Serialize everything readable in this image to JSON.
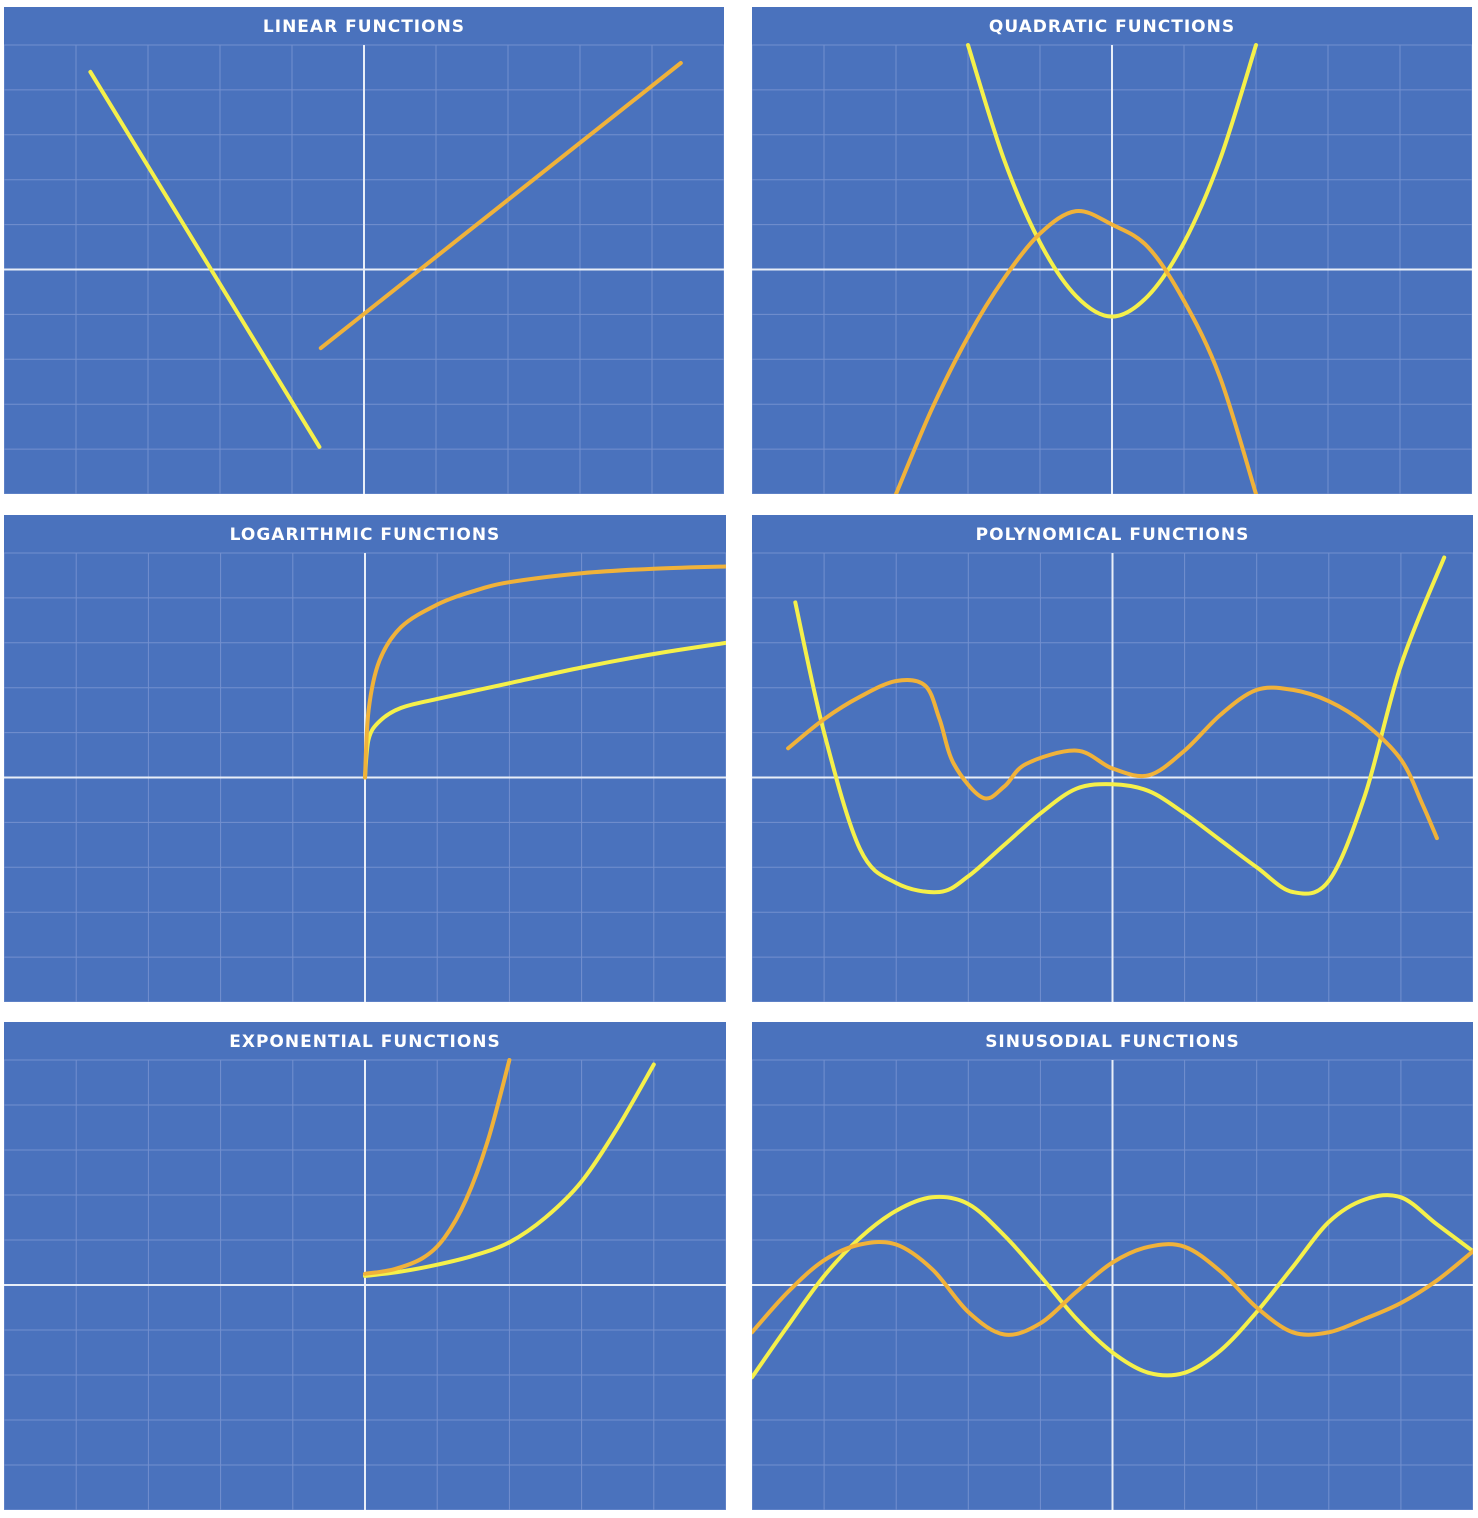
{
  "colors": {
    "panel_background": "#4a72bd",
    "grid": "#7390cf",
    "axis": "#e8eef8",
    "title_text": "#ffffff",
    "yellow_curve": "#f5f04a",
    "orange_curve": "#f0b23a"
  },
  "panels": [
    {
      "title": "LINEAR FUNCTIONS"
    },
    {
      "title": "QUADRATIC FUNCTIONS"
    },
    {
      "title": "LOGARITHMIC FUNCTIONS"
    },
    {
      "title": "POLYNOMICAL FUNCTIONS"
    },
    {
      "title": "EXPONENTIAL FUNCTIONS"
    },
    {
      "title": "SINUSODIAL FUNCTIONS"
    }
  ],
  "chart_data": [
    {
      "type": "line",
      "title": "LINEAR FUNCTIONS",
      "xlim": [
        -5,
        5
      ],
      "ylim": [
        -5,
        5
      ],
      "grid": true,
      "legend": "none",
      "series": [
        {
          "color": "#f5f04a",
          "points": [
            [
              -3.8,
              4.4
            ],
            [
              -0.62,
              -3.95
            ]
          ]
        },
        {
          "color": "#f0b23a",
          "points": [
            [
              -0.6,
              -1.75
            ],
            [
              4.4,
              4.6
            ]
          ]
        }
      ]
    },
    {
      "type": "line",
      "title": "QUADRATIC FUNCTIONS",
      "xlim": [
        -5,
        5
      ],
      "ylim": [
        -5,
        5
      ],
      "grid": true,
      "legend": "none",
      "series": [
        {
          "color": "#f5f04a",
          "points": [
            [
              -2,
              5
            ],
            [
              -1.5,
              2.45
            ],
            [
              -1,
              0.6
            ],
            [
              -0.5,
              -0.59
            ],
            [
              0,
              -1.05
            ],
            [
              0.5,
              -0.59
            ],
            [
              1,
              0.6
            ],
            [
              1.5,
              2.45
            ],
            [
              2,
              5
            ]
          ]
        },
        {
          "color": "#f0b23a",
          "points": [
            [
              -3,
              -5
            ],
            [
              -2.5,
              -3.1
            ],
            [
              -2,
              -1.5
            ],
            [
              -1.5,
              -0.2
            ],
            [
              -1,
              0.8
            ],
            [
              -0.5,
              1.3
            ],
            [
              0,
              1
            ],
            [
              0.5,
              0.5
            ],
            [
              1,
              -0.7
            ],
            [
              1.5,
              -2.4
            ],
            [
              2,
              -5
            ]
          ]
        }
      ]
    },
    {
      "type": "line",
      "title": "LOGARITHMIC FUNCTIONS",
      "xlim": [
        -5,
        5
      ],
      "ylim": [
        -5,
        5
      ],
      "grid": true,
      "legend": "none",
      "series": [
        {
          "color": "#f5f04a",
          "points": [
            [
              0,
              0
            ],
            [
              0.05,
              0.85
            ],
            [
              0.2,
              1.25
            ],
            [
              0.5,
              1.55
            ],
            [
              1,
              1.75
            ],
            [
              2,
              2.1
            ],
            [
              3,
              2.45
            ],
            [
              4,
              2.75
            ],
            [
              5,
              3.0
            ]
          ]
        },
        {
          "color": "#f0b23a",
          "points": [
            [
              0,
              0
            ],
            [
              0.05,
              1.5
            ],
            [
              0.2,
              2.6
            ],
            [
              0.5,
              3.35
            ],
            [
              1,
              3.85
            ],
            [
              1.5,
              4.15
            ],
            [
              2,
              4.35
            ],
            [
              3,
              4.55
            ],
            [
              4,
              4.65
            ],
            [
              5,
              4.7
            ]
          ]
        }
      ]
    },
    {
      "type": "line",
      "title": "POLYNOMICAL FUNCTIONS",
      "xlim": [
        -5,
        5
      ],
      "ylim": [
        -5,
        5
      ],
      "grid": true,
      "legend": "none",
      "series": [
        {
          "color": "#f5f04a",
          "points": [
            [
              -4.4,
              3.9
            ],
            [
              -4.0,
              1.0
            ],
            [
              -3.5,
              -1.6
            ],
            [
              -3.0,
              -2.35
            ],
            [
              -2.4,
              -2.55
            ],
            [
              -2.0,
              -2.2
            ],
            [
              -1.5,
              -1.5
            ],
            [
              -1.0,
              -0.8
            ],
            [
              -0.5,
              -0.25
            ],
            [
              0,
              -0.15
            ],
            [
              0.5,
              -0.3
            ],
            [
              1.0,
              -0.8
            ],
            [
              1.5,
              -1.4
            ],
            [
              2.0,
              -2.0
            ],
            [
              2.5,
              -2.55
            ],
            [
              3.0,
              -2.3
            ],
            [
              3.5,
              -0.4
            ],
            [
              4.0,
              2.5
            ],
            [
              4.6,
              4.9
            ]
          ]
        },
        {
          "color": "#f0b23a",
          "points": [
            [
              -4.5,
              0.65
            ],
            [
              -4.0,
              1.3
            ],
            [
              -3.5,
              1.8
            ],
            [
              -3.0,
              2.15
            ],
            [
              -2.6,
              2.05
            ],
            [
              -2.4,
              1.3
            ],
            [
              -2.2,
              0.3
            ],
            [
              -1.8,
              -0.45
            ],
            [
              -1.5,
              -0.2
            ],
            [
              -1.2,
              0.3
            ],
            [
              -0.5,
              0.6
            ],
            [
              0,
              0.2
            ],
            [
              0.5,
              0.05
            ],
            [
              1.0,
              0.6
            ],
            [
              1.5,
              1.4
            ],
            [
              2.0,
              1.95
            ],
            [
              2.5,
              1.95
            ],
            [
              3.0,
              1.7
            ],
            [
              3.5,
              1.2
            ],
            [
              4.0,
              0.4
            ],
            [
              4.3,
              -0.6
            ],
            [
              4.5,
              -1.35
            ]
          ]
        }
      ]
    },
    {
      "type": "line",
      "title": "EXPONENTIAL FUNCTIONS",
      "xlim": [
        -5,
        5
      ],
      "ylim": [
        -5,
        5
      ],
      "grid": true,
      "legend": "none",
      "series": [
        {
          "color": "#f5f04a",
          "points": [
            [
              0,
              0.2
            ],
            [
              0.5,
              0.3
            ],
            [
              1.0,
              0.45
            ],
            [
              1.5,
              0.65
            ],
            [
              2.0,
              0.95
            ],
            [
              2.5,
              1.5
            ],
            [
              3.0,
              2.3
            ],
            [
              3.5,
              3.5
            ],
            [
              4.0,
              4.9
            ]
          ]
        },
        {
          "color": "#f0b23a",
          "points": [
            [
              0,
              0.25
            ],
            [
              0.4,
              0.35
            ],
            [
              0.8,
              0.6
            ],
            [
              1.1,
              1.05
            ],
            [
              1.4,
              1.9
            ],
            [
              1.7,
              3.2
            ],
            [
              2.0,
              5.0
            ]
          ]
        }
      ]
    },
    {
      "type": "line",
      "title": "SINUSODIAL FUNCTIONS",
      "xlim": [
        -5,
        5
      ],
      "ylim": [
        -5,
        5
      ],
      "grid": true,
      "legend": "none",
      "series": [
        {
          "color": "#f5f04a",
          "points": [
            [
              -5,
              -2.05
            ],
            [
              -4.5,
              -0.9
            ],
            [
              -4,
              0.2
            ],
            [
              -3.5,
              1.05
            ],
            [
              -3,
              1.65
            ],
            [
              -2.5,
              1.95
            ],
            [
              -2,
              1.8
            ],
            [
              -1.5,
              1.1
            ],
            [
              -1,
              0.2
            ],
            [
              -0.5,
              -0.75
            ],
            [
              0,
              -1.5
            ],
            [
              0.5,
              -1.95
            ],
            [
              1,
              -1.95
            ],
            [
              1.5,
              -1.45
            ],
            [
              2,
              -0.6
            ],
            [
              2.5,
              0.4
            ],
            [
              3,
              1.4
            ],
            [
              3.5,
              1.9
            ],
            [
              4,
              1.95
            ],
            [
              4.5,
              1.35
            ],
            [
              5,
              0.75
            ]
          ]
        },
        {
          "color": "#f0b23a",
          "points": [
            [
              -5,
              -1.05
            ],
            [
              -4.5,
              -0.15
            ],
            [
              -4,
              0.55
            ],
            [
              -3.5,
              0.9
            ],
            [
              -3,
              0.9
            ],
            [
              -2.5,
              0.35
            ],
            [
              -2,
              -0.6
            ],
            [
              -1.5,
              -1.1
            ],
            [
              -1,
              -0.85
            ],
            [
              -0.5,
              -0.15
            ],
            [
              0,
              0.5
            ],
            [
              0.5,
              0.85
            ],
            [
              1,
              0.85
            ],
            [
              1.5,
              0.3
            ],
            [
              2,
              -0.5
            ],
            [
              2.5,
              -1.05
            ],
            [
              3,
              -1.05
            ],
            [
              3.5,
              -0.75
            ],
            [
              4,
              -0.4
            ],
            [
              4.5,
              0.1
            ],
            [
              5,
              0.75
            ]
          ]
        }
      ]
    }
  ]
}
